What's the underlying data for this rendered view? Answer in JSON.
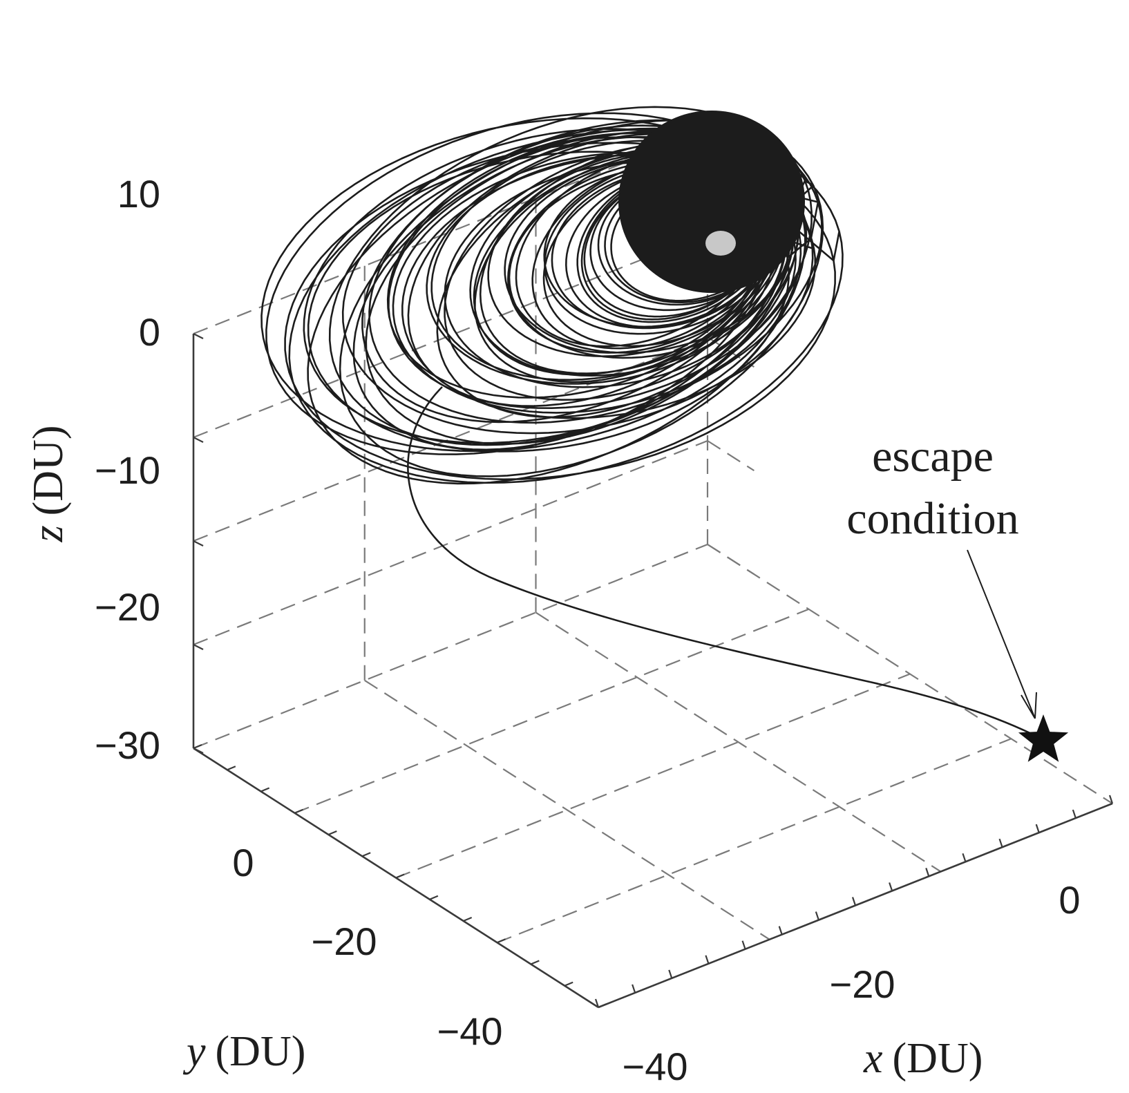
{
  "chart_data": {
    "type": "line",
    "projection": "3d",
    "title": "",
    "xlabel_var": "x",
    "xlabel_unit": "(DU)",
    "ylabel_var": "y",
    "ylabel_unit": "(DU)",
    "zlabel_var": "z",
    "zlabel_unit": "(DU)",
    "xlim": [
      -40,
      10
    ],
    "ylim": [
      -50,
      10
    ],
    "zlim": [
      -30,
      10
    ],
    "x_ticks": [
      "0",
      "−20",
      "−40"
    ],
    "y_ticks": [
      "0",
      "−20",
      "−40"
    ],
    "z_ticks": [
      "10",
      "0",
      "−10",
      "−20",
      "−30"
    ],
    "grid": true,
    "trajectory": {
      "description_points": [
        {
          "x": 0,
          "y": 0,
          "z": 5
        },
        {
          "x": -20,
          "y": -10,
          "z": -8
        },
        {
          "x": -26,
          "y": -18,
          "z": -25
        },
        {
          "x": 2,
          "y": -12,
          "z": -29
        }
      ]
    },
    "markers": [
      {
        "name": "central body",
        "x": 0,
        "y": 0,
        "z": 5,
        "color": "#c8c8c8"
      },
      {
        "name": "escape point",
        "x": 2,
        "y": -12,
        "z": -29,
        "symbol": "star",
        "color": "#111111"
      }
    ],
    "annotations": [
      {
        "line1": "escape",
        "line2": "condition"
      }
    ]
  }
}
